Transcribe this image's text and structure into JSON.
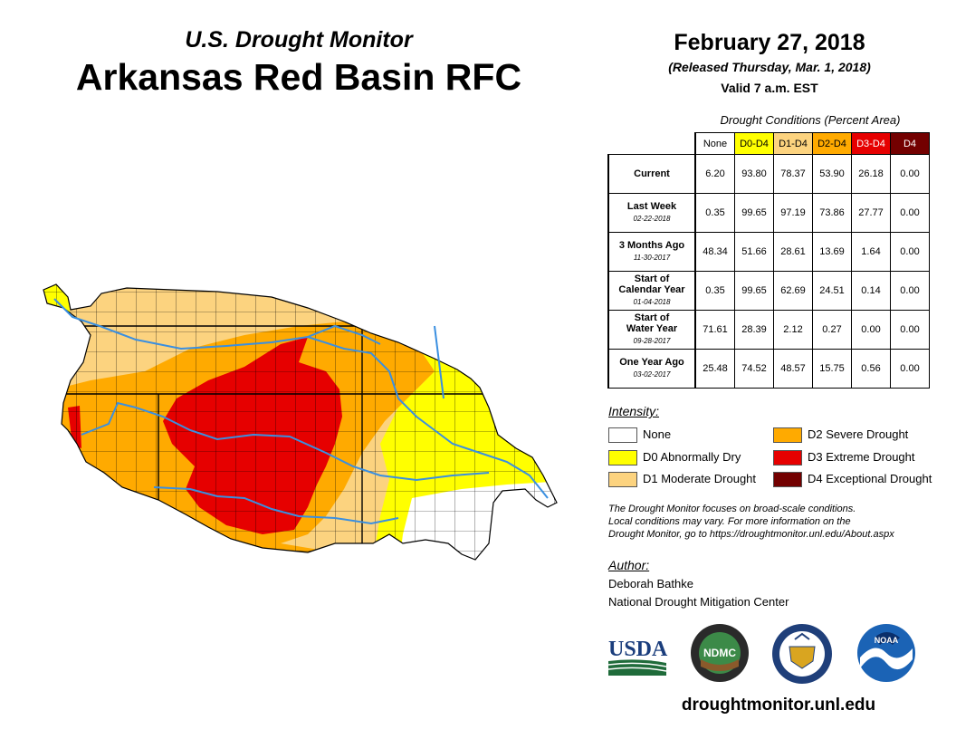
{
  "header": {
    "subtitle": "U.S. Drought Monitor",
    "title": "Arkansas Red Basin RFC",
    "date": "February 27, 2018",
    "released": "(Released Thursday, Mar. 1, 2018)",
    "valid": "Valid 7 a.m. EST"
  },
  "table": {
    "caption": "Drought Conditions (Percent Area)",
    "columns": [
      {
        "label": "None",
        "color": "#ffffff",
        "text_color": "#000000"
      },
      {
        "label": "D0-D4",
        "color": "#ffff00",
        "text_color": "#000000"
      },
      {
        "label": "D1-D4",
        "color": "#fcd37f",
        "text_color": "#000000"
      },
      {
        "label": "D2-D4",
        "color": "#ffaa00",
        "text_color": "#000000"
      },
      {
        "label": "D3-D4",
        "color": "#e60000",
        "text_color": "#ffffff"
      },
      {
        "label": "D4",
        "color": "#730000",
        "text_color": "#ffffff"
      }
    ],
    "rows": [
      {
        "label": "Current",
        "label2": "",
        "date": "",
        "values": [
          "6.20",
          "93.80",
          "78.37",
          "53.90",
          "26.18",
          "0.00"
        ]
      },
      {
        "label": "Last Week",
        "label2": "",
        "date": "02-22-2018",
        "values": [
          "0.35",
          "99.65",
          "97.19",
          "73.86",
          "27.77",
          "0.00"
        ]
      },
      {
        "label": "3 Months Ago",
        "label2": "",
        "date": "11-30-2017",
        "values": [
          "48.34",
          "51.66",
          "28.61",
          "13.69",
          "1.64",
          "0.00"
        ]
      },
      {
        "label": "Start of",
        "label2": "Calendar Year",
        "date": "01-04-2018",
        "values": [
          "0.35",
          "99.65",
          "62.69",
          "24.51",
          "0.14",
          "0.00"
        ]
      },
      {
        "label": "Start of",
        "label2": "Water Year",
        "date": "09-28-2017",
        "values": [
          "71.61",
          "28.39",
          "2.12",
          "0.27",
          "0.00",
          "0.00"
        ]
      },
      {
        "label": "One Year Ago",
        "label2": "",
        "date": "03-02-2017",
        "values": [
          "25.48",
          "74.52",
          "48.57",
          "15.75",
          "0.56",
          "0.00"
        ]
      }
    ]
  },
  "legend": {
    "title": "Intensity:",
    "items": [
      {
        "label": "None",
        "color": "#ffffff"
      },
      {
        "label": "D0 Abnormally Dry",
        "color": "#ffff00"
      },
      {
        "label": "D1 Moderate Drought",
        "color": "#fcd37f"
      },
      {
        "label": "D2 Severe Drought",
        "color": "#ffaa00"
      },
      {
        "label": "D3 Extreme Drought",
        "color": "#e60000"
      },
      {
        "label": "D4 Exceptional Drought",
        "color": "#730000"
      }
    ]
  },
  "note": {
    "line1": "The Drought Monitor focuses on broad-scale conditions.",
    "line2": "Local conditions may vary. For more information on the",
    "line3": "Drought Monitor, go to https://droughtmonitor.unl.edu/About.aspx"
  },
  "author": {
    "title": "Author:",
    "name": "Deborah Bathke",
    "org": "National Drought Mitigation Center"
  },
  "logos": {
    "usda": "USDA",
    "ndmc": "NDMC",
    "noaa": "NOAA"
  },
  "map_colors": {
    "river": "#3a8fe0",
    "county_line": "#000000"
  },
  "url": "droughtmonitor.unl.edu"
}
